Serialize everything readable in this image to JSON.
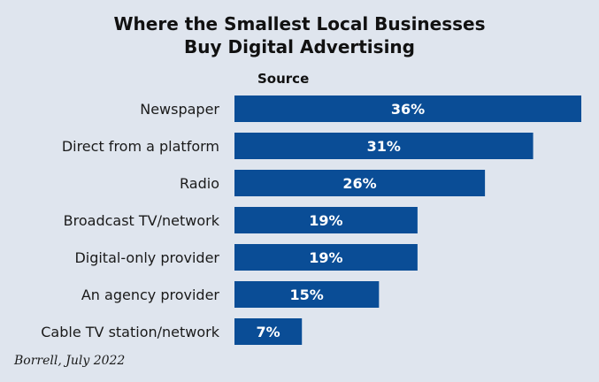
{
  "chart_data": {
    "type": "bar",
    "orientation": "horizontal",
    "title_line1": "Where the Smallest Local Businesses",
    "title_line2": "Buy Digital Advertising",
    "category_header": "Source",
    "categories": [
      "Newspaper",
      "Direct from a platform",
      "Radio",
      "Broadcast TV/network",
      "Digital-only provider",
      "An agency provider",
      "Cable TV station/network"
    ],
    "values": [
      36,
      31,
      26,
      19,
      19,
      15,
      7
    ],
    "value_labels": [
      "36%",
      "31%",
      "26%",
      "19%",
      "19%",
      "15%",
      "7%"
    ],
    "xlim": [
      0,
      36
    ],
    "bar_color": "#0a4d96",
    "grid": false,
    "legend": "none"
  },
  "footnote": "Borrell, July 2022"
}
